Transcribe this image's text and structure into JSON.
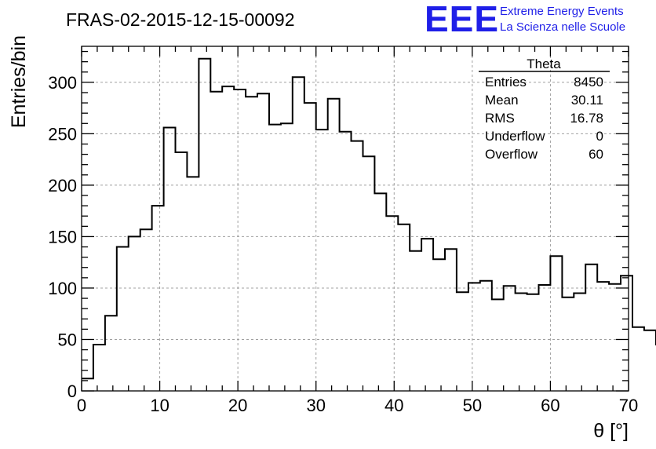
{
  "header": {
    "run_title": "FRAS-02-2015-12-15-00092",
    "logo_text": "EEE",
    "logo_line1": "Extreme Energy Events",
    "logo_line2": "La Scienza nelle Scuole"
  },
  "colors": {
    "logo": "#1f1fe8",
    "line": "#000000",
    "grid": "#a0a0a0"
  },
  "stats": {
    "name": "Theta",
    "rows": [
      {
        "label": "Entries",
        "value": "8450"
      },
      {
        "label": "Mean",
        "value": "30.11"
      },
      {
        "label": "RMS",
        "value": "16.78"
      },
      {
        "label": "Underflow",
        "value": "0"
      },
      {
        "label": "Overflow",
        "value": "60"
      }
    ]
  },
  "chart_data": {
    "type": "histogram",
    "xlabel": "θ [°]",
    "ylabel": "Entries/bin",
    "xlim": [
      0,
      70
    ],
    "ylim": [
      0,
      335
    ],
    "grid": true,
    "stats_box_placement": "top-right",
    "x_ticks": [
      0,
      10,
      20,
      30,
      40,
      50,
      60,
      70
    ],
    "y_ticks": [
      0,
      50,
      100,
      150,
      200,
      250,
      300
    ],
    "bin_width": 1.5,
    "bin_edges_start": 0,
    "values": [
      12,
      45,
      73,
      140,
      150,
      157,
      180,
      256,
      232,
      208,
      323,
      291,
      296,
      293,
      286,
      289,
      259,
      260,
      305,
      280,
      254,
      284,
      252,
      243,
      228,
      192,
      170,
      162,
      136,
      148,
      128,
      138,
      96,
      105,
      107,
      89,
      102,
      95,
      94,
      103,
      131,
      91,
      95,
      123,
      106,
      104,
      112,
      62,
      59,
      45
    ]
  }
}
